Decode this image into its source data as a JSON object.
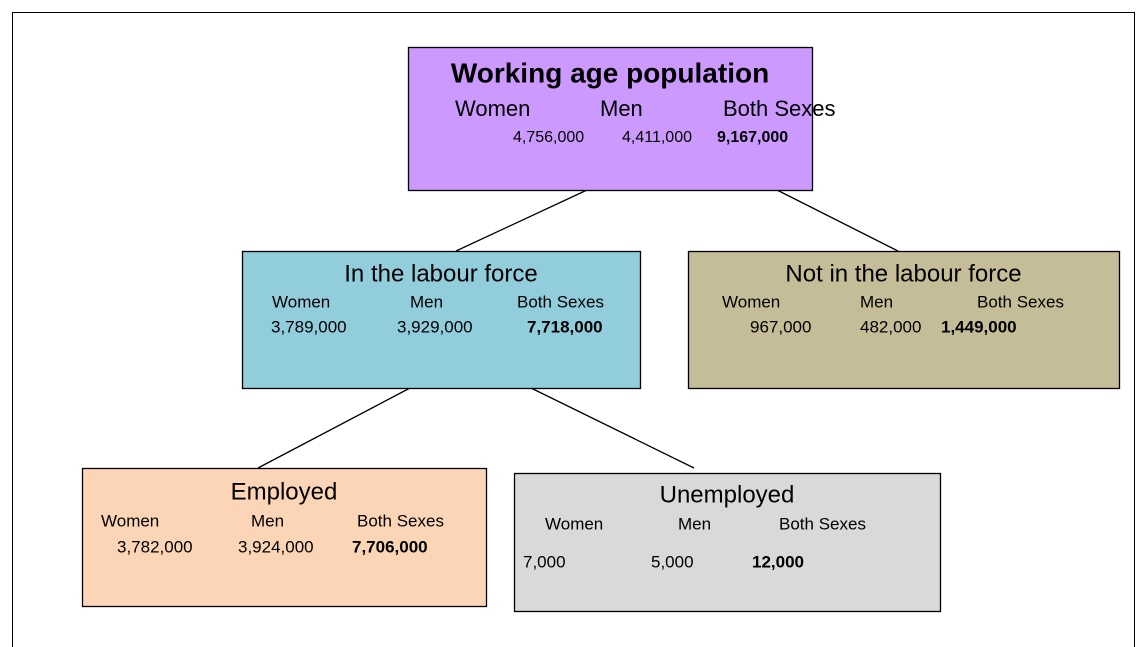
{
  "nodes": [
    {
      "title": "Working age population",
      "headers": [
        "Women",
        "Men",
        "Both Sexes"
      ],
      "values": [
        "4,756,000",
        "4,411,000",
        "9,167,000"
      ]
    },
    {
      "title": "In the labour force",
      "headers": [
        "Women",
        "Men",
        "Both Sexes"
      ],
      "values": [
        "3,789,000",
        "3,929,000",
        "7,718,000"
      ]
    },
    {
      "title": "Not in the labour force",
      "headers": [
        "Women",
        "Men",
        "Both Sexes"
      ],
      "values": [
        "967,000",
        "482,000",
        "1,449,000"
      ]
    },
    {
      "title": "Employed",
      "headers": [
        "Women",
        "Men",
        "Both Sexes"
      ],
      "values": [
        "3,782,000",
        "3,924,000",
        "7,706,000"
      ]
    },
    {
      "title": "Unemployed",
      "headers": [
        "Women",
        "Men",
        "Both Sexes"
      ],
      "values": [
        "7,000",
        "5,000",
        "12,000"
      ]
    }
  ]
}
